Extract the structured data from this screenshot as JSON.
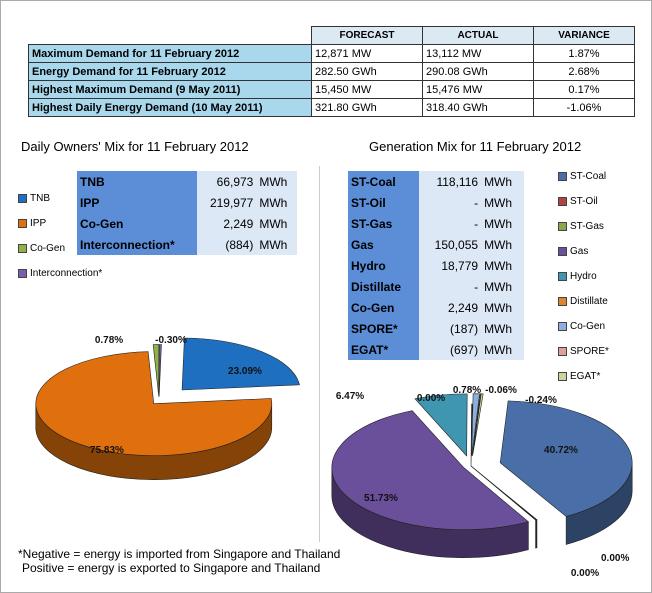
{
  "summary": {
    "headers": [
      "",
      "FORECAST",
      "ACTUAL",
      "VARIANCE"
    ],
    "rows": [
      {
        "label": "Maximum Demand for 11 February 2012",
        "forecast": "12,871  MW",
        "actual": "13,112  MW",
        "variance": "1.87%"
      },
      {
        "label": "Energy Demand for 11 February 2012",
        "forecast": "282.50  GWh",
        "actual": "290.08  GWh",
        "variance": "2.68%"
      },
      {
        "label": "Highest Maximum Demand (9 May 2011)",
        "forecast": "15,450  MW",
        "actual": "15,476  MW",
        "variance": "0.17%"
      },
      {
        "label": "Highest Daily Energy Demand (10 May 2011)",
        "forecast": "321.80  GWh",
        "actual": "318.40  GWh",
        "variance": "-1.06%"
      }
    ]
  },
  "owners": {
    "title": "Daily Owners' Mix for 11 February 2012",
    "legend": [
      {
        "name": "TNB",
        "color": "#1f6fc0"
      },
      {
        "name": "IPP",
        "color": "#e0700e"
      },
      {
        "name": "Co-Gen",
        "color": "#8fb04a"
      },
      {
        "name": "Interconnection*",
        "color": "#7a5fa8"
      }
    ],
    "table": [
      {
        "label": "TNB",
        "value": "66,973",
        "unit": "MWh"
      },
      {
        "label": "IPP",
        "value": "219,977",
        "unit": "MWh"
      },
      {
        "label": "Co-Gen",
        "value": "2,249",
        "unit": "MWh"
      },
      {
        "label": "Interconnection*",
        "value": "(884)",
        "unit": "MWh"
      }
    ]
  },
  "generation": {
    "title": "Generation Mix for 11 February 2012",
    "legend": [
      {
        "name": "ST-Coal",
        "color": "#4a6fa8"
      },
      {
        "name": "ST-Oil",
        "color": "#b0443f"
      },
      {
        "name": "ST-Gas",
        "color": "#8aa84a"
      },
      {
        "name": "Gas",
        "color": "#6a4f9a"
      },
      {
        "name": "Hydro",
        "color": "#3f96b0"
      },
      {
        "name": "Distillate",
        "color": "#e0842e"
      },
      {
        "name": "Co-Gen",
        "color": "#8cafde"
      },
      {
        "name": "SPORE*",
        "color": "#e0a09a"
      },
      {
        "name": "EGAT*",
        "color": "#c8d7a0"
      }
    ],
    "table": [
      {
        "label": "ST-Coal",
        "value": "118,116",
        "unit": "MWh"
      },
      {
        "label": "ST-Oil",
        "value": "-",
        "unit": "MWh"
      },
      {
        "label": "ST-Gas",
        "value": "-",
        "unit": "MWh"
      },
      {
        "label": "Gas",
        "value": "150,055",
        "unit": "MWh"
      },
      {
        "label": "Hydro",
        "value": "18,779",
        "unit": "MWh"
      },
      {
        "label": "Distillate",
        "value": "-",
        "unit": "MWh"
      },
      {
        "label": "Co-Gen",
        "value": "2,249",
        "unit": "MWh"
      },
      {
        "label": "SPORE*",
        "value": "(187)",
        "unit": "MWh"
      },
      {
        "label": "EGAT*",
        "value": "(697)",
        "unit": "MWh"
      }
    ]
  },
  "note": {
    "line1": "*Negative = energy is imported from Singapore and Thailand",
    "line2": "Positive = energy is exported to Singapore and Thailand"
  },
  "chart_data": [
    {
      "type": "pie",
      "title": "Daily Owners' Mix for 11 February 2012",
      "labels": [
        "TNB",
        "IPP",
        "Co-Gen",
        "Interconnection*"
      ],
      "values": [
        23.09,
        75.83,
        0.78,
        -0.3
      ],
      "data_labels": [
        "23.09%",
        "75.83%",
        "0.78%",
        "-0.30%"
      ],
      "colors": [
        "#1f6fc0",
        "#e0700e",
        "#8fb04a",
        "#7a5fa8"
      ],
      "legend_position": "left",
      "style": "3d-exploded"
    },
    {
      "type": "pie",
      "title": "Generation Mix for 11 February 2012",
      "labels": [
        "ST-Coal",
        "ST-Oil",
        "ST-Gas",
        "Gas",
        "Hydro",
        "Distillate",
        "Co-Gen",
        "SPORE*",
        "EGAT*"
      ],
      "values": [
        40.72,
        0.0,
        0.0,
        51.73,
        6.47,
        0.0,
        0.78,
        -0.06,
        -0.24
      ],
      "data_labels": [
        "40.72%",
        "0.00%",
        "0.00%",
        "51.73%",
        "6.47%",
        "0.00%",
        "0.78%",
        "-0.06%",
        "-0.24%"
      ],
      "colors": [
        "#4a6fa8",
        "#b0443f",
        "#8aa84a",
        "#6a4f9a",
        "#3f96b0",
        "#e0842e",
        "#8cafde",
        "#e0a09a",
        "#c8d7a0"
      ],
      "legend_position": "right",
      "style": "3d-exploded"
    }
  ]
}
